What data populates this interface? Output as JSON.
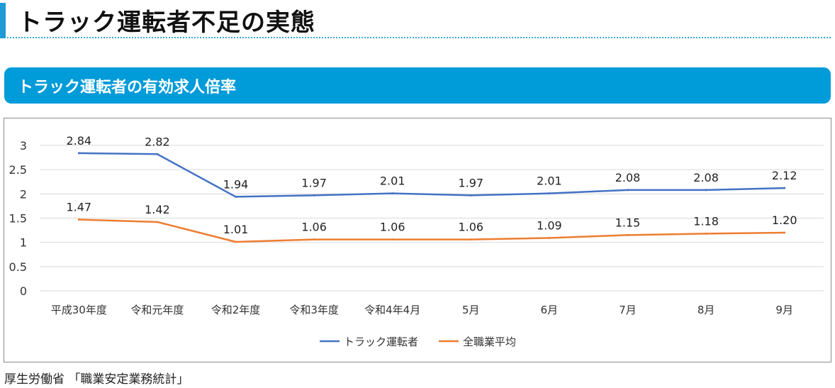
{
  "header": {
    "title": "トラック運転者不足の実態"
  },
  "section": {
    "title": "トラック運転者の有効求人倍率"
  },
  "source": "厚生労働省 「職業安定業務統計」",
  "colors": {
    "accent": "#1e9ad6",
    "banner": "#009bd9",
    "series_driver": "#4472c4",
    "series_all": "#ed7d31",
    "grid": "#d9d9d9"
  },
  "chart_data": {
    "type": "line",
    "categories": [
      "平成30年度",
      "令和元年度",
      "令和2年度",
      "令和3年度",
      "令和4年4月",
      "5月",
      "6月",
      "7月",
      "8月",
      "9月"
    ],
    "series": [
      {
        "name": "トラック運転者",
        "color": "#4472c4",
        "values": [
          2.84,
          2.82,
          1.94,
          1.97,
          2.01,
          1.97,
          2.01,
          2.08,
          2.08,
          2.12
        ],
        "labels": [
          "2.84",
          "2.82",
          "1.94",
          "1.97",
          "2.01",
          "1.97",
          "2.01",
          "2.08",
          "2.08",
          "2.12"
        ]
      },
      {
        "name": "全職業平均",
        "color": "#ed7d31",
        "values": [
          1.47,
          1.42,
          1.01,
          1.06,
          1.06,
          1.06,
          1.09,
          1.15,
          1.18,
          1.2
        ],
        "labels": [
          "1.47",
          "1.42",
          "1.01",
          "1.06",
          "1.06",
          "1.06",
          "1.09",
          "1.15",
          "1.18",
          "1.20"
        ]
      }
    ],
    "y_ticks": [
      "0",
      "0.5",
      "1",
      "1.5",
      "2",
      "2.5",
      "3"
    ],
    "ylim": [
      0,
      3
    ],
    "grid": true,
    "legend_position": "bottom"
  }
}
